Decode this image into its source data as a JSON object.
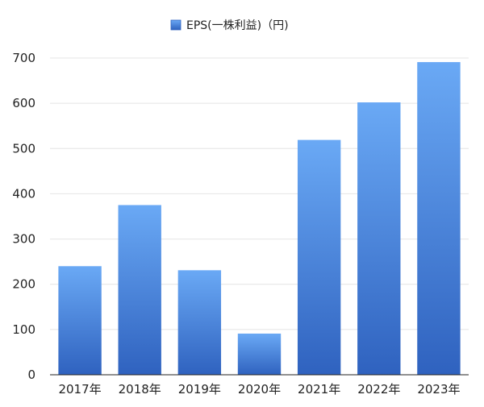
{
  "chart_data": {
    "type": "bar",
    "categories": [
      "2017年",
      "2018年",
      "2019年",
      "2020年",
      "2021年",
      "2022年",
      "2023年"
    ],
    "series": [
      {
        "name": "EPS(一株利益)（円)",
        "values": [
          240,
          375,
          231,
          91,
          519,
          602,
          691
        ]
      }
    ],
    "ylim": [
      0,
      700
    ],
    "yticks": [
      0,
      100,
      200,
      300,
      400,
      500,
      600,
      700
    ],
    "grid": true,
    "legend": "top-center",
    "colors": {
      "bar_top": "#6aa9f5",
      "bar_bottom": "#2f62bf",
      "grid": "#e4e4e4",
      "axis": "#222222"
    }
  }
}
